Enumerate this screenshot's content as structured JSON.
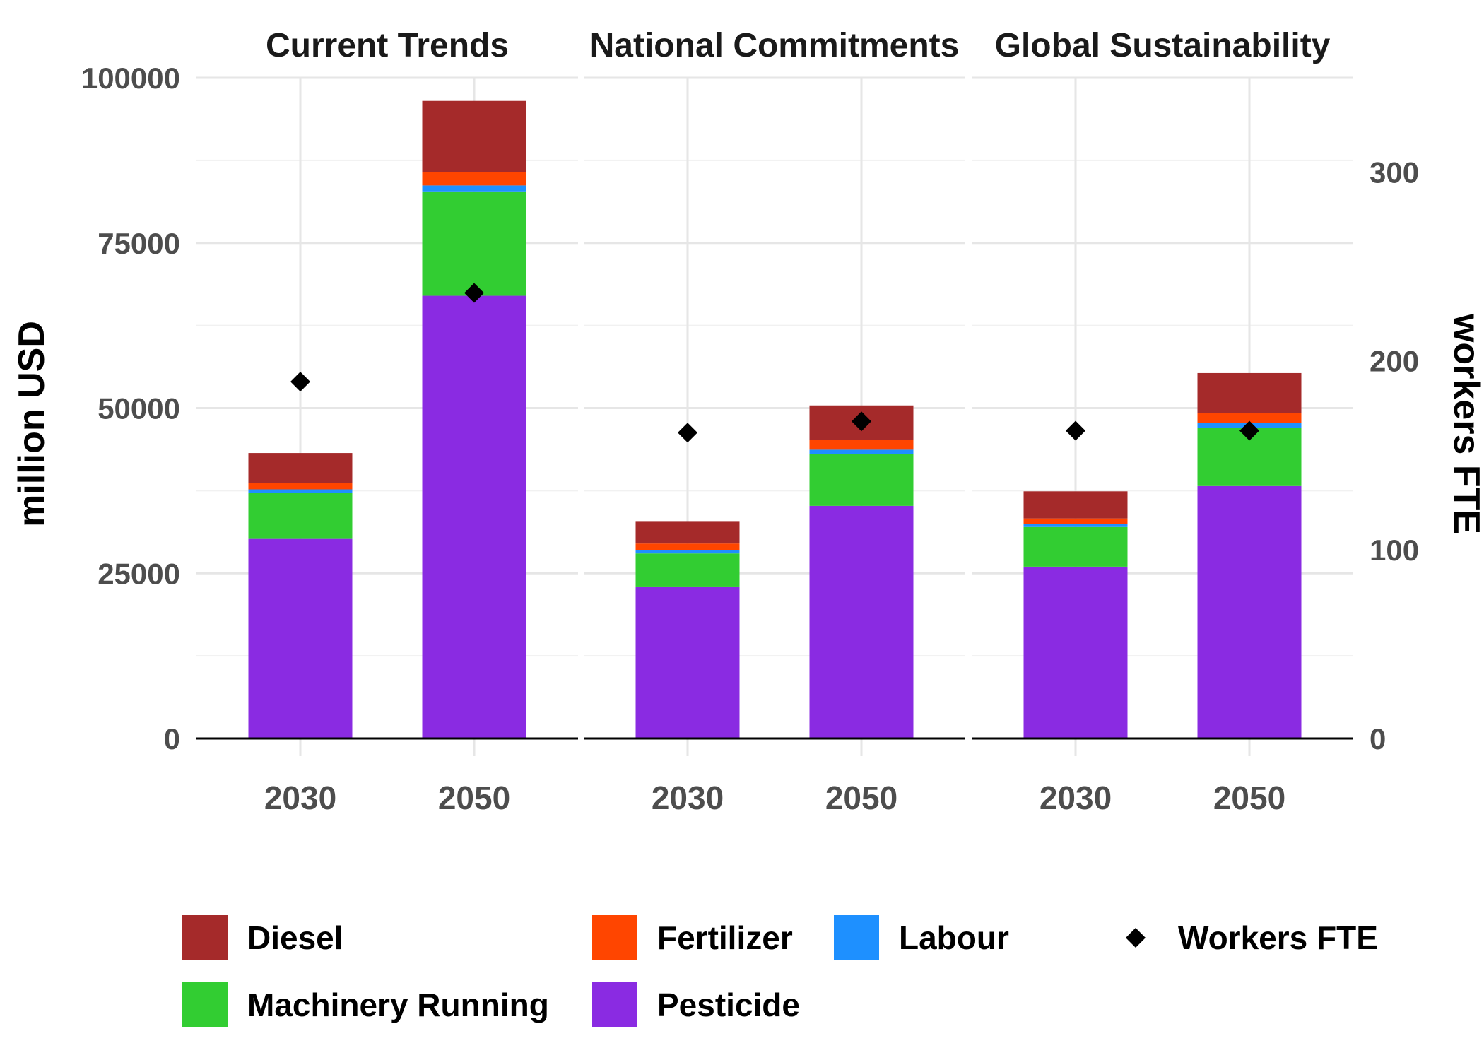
{
  "chart_data": {
    "type": "bar",
    "stacked": true,
    "panels": [
      "Current Trends",
      "National Commitments",
      "Global Sustainability"
    ],
    "categories": [
      "2030",
      "2050"
    ],
    "ylabel": "million USD",
    "y2label": "workers FTE",
    "ylim": [
      0,
      100000
    ],
    "yticks": [
      0,
      25000,
      50000,
      75000,
      100000
    ],
    "y2lim": [
      0,
      350
    ],
    "y2ticks": [
      0,
      100,
      200,
      300
    ],
    "grid": true,
    "legend_position": "bottom",
    "series": [
      {
        "name": "Pesticide",
        "color": "#8A2BE2",
        "values": [
          [
            30200,
            67000
          ],
          [
            23000,
            35200
          ],
          [
            26000,
            38200
          ]
        ]
      },
      {
        "name": "Machinery Running",
        "color": "#32CD32",
        "values": [
          [
            7000,
            15800
          ],
          [
            5000,
            7800
          ],
          [
            6000,
            8800
          ]
        ]
      },
      {
        "name": "Labour",
        "color": "#1E90FF",
        "values": [
          [
            500,
            900
          ],
          [
            500,
            700
          ],
          [
            500,
            800
          ]
        ]
      },
      {
        "name": "Fertilizer",
        "color": "#FF4500",
        "values": [
          [
            1000,
            2000
          ],
          [
            1000,
            1500
          ],
          [
            800,
            1400
          ]
        ]
      },
      {
        "name": "Diesel",
        "color": "#A52A2A",
        "values": [
          [
            4500,
            10800
          ],
          [
            3400,
            5200
          ],
          [
            4100,
            6100
          ]
        ]
      }
    ],
    "points": {
      "name": "Workers FTE",
      "axis": "secondary",
      "values": [
        [
          189,
          236
        ],
        [
          162,
          168
        ],
        [
          163,
          163
        ]
      ]
    },
    "legend": [
      {
        "name": "Diesel",
        "kind": "box",
        "color": "#A52A2A"
      },
      {
        "name": "Fertilizer",
        "kind": "box",
        "color": "#FF4500"
      },
      {
        "name": "Labour",
        "kind": "box",
        "color": "#1E90FF"
      },
      {
        "name": "Workers FTE",
        "kind": "diamond",
        "color": "#000000"
      },
      {
        "name": "Machinery Running",
        "kind": "box",
        "color": "#32CD32"
      },
      {
        "name": "Pesticide",
        "kind": "box",
        "color": "#8A2BE2"
      }
    ]
  }
}
